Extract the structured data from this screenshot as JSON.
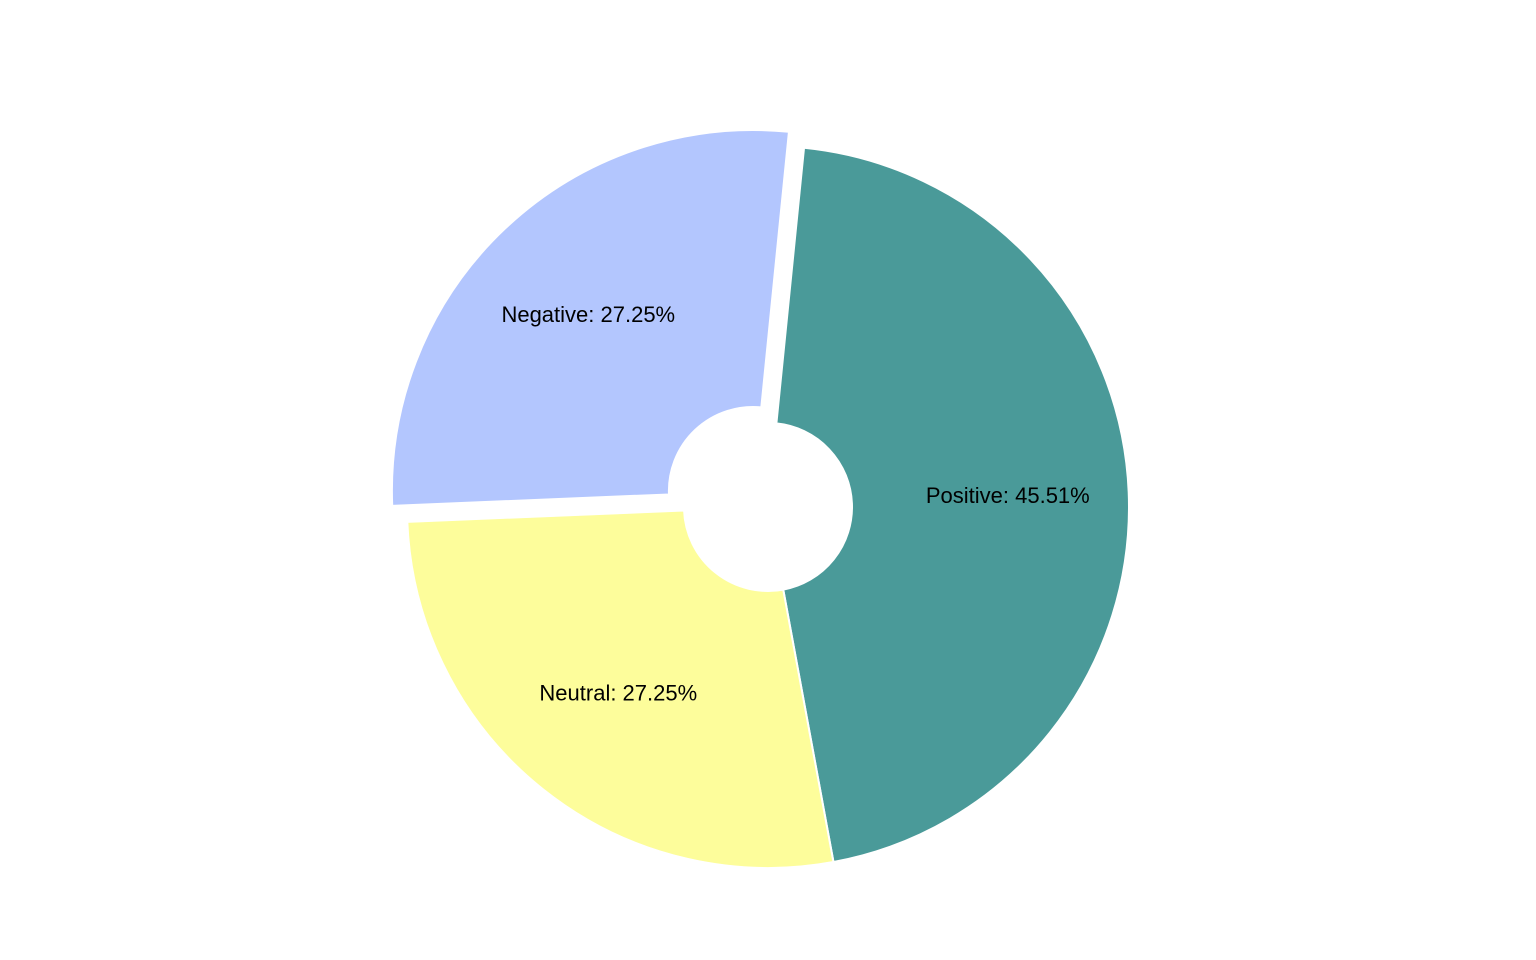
{
  "chart_data": {
    "type": "pie",
    "title": "",
    "slices": [
      {
        "name": "Positive",
        "value": 45.51,
        "label": "Positive: 45.51%",
        "color": "#4a9a99"
      },
      {
        "name": "Neutral",
        "value": 27.25,
        "label": "Neutral: 27.25%",
        "color": "#fdfd9b"
      },
      {
        "name": "Negative",
        "value": 27.25,
        "label": "Negative: 27.25%",
        "color": "#b3c6fe"
      }
    ],
    "donut": true,
    "start": "12 o'clock",
    "direction": "clockwise",
    "separator_color": "#ffffff",
    "legend": "none"
  }
}
